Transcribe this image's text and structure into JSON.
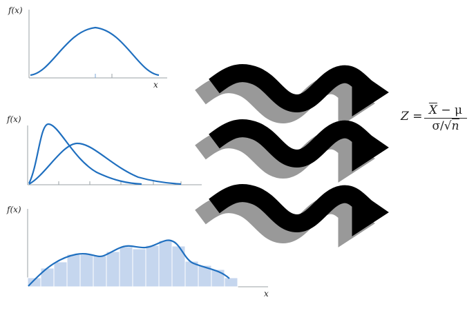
{
  "panels": [
    {
      "ylabel": "f(x)",
      "xlabel": "x"
    },
    {
      "ylabel": "f(x)",
      "xlabel": ""
    },
    {
      "ylabel": "f(x)",
      "xlabel": "x"
    }
  ],
  "formula": {
    "lhs": "Z =",
    "numerator_var": "X",
    "numerator_rest": " − μ",
    "denominator_lead": "σ/√",
    "denominator_var": "n"
  },
  "colors": {
    "curve": "#1f6fbf",
    "histogram_fill": "#c5d6ee",
    "arrow_front": "#000000",
    "arrow_shadow": "#999999"
  }
}
